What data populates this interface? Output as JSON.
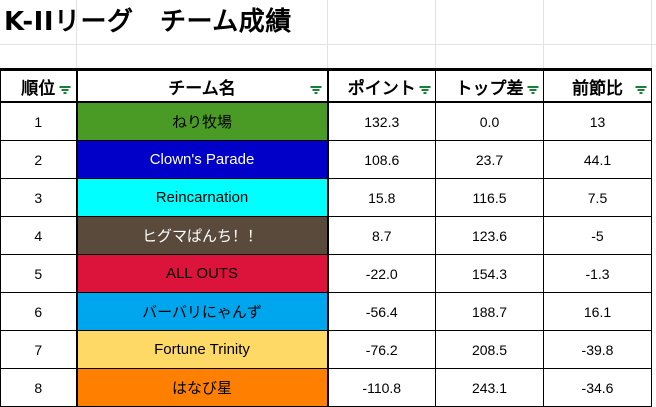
{
  "title": "K-IIリーグ　チーム成績",
  "headers": {
    "rank": "順位",
    "team": "チーム名",
    "points": "ポイント",
    "gap": "トップ差",
    "change": "前節比"
  },
  "filter_icon": "filter-icon",
  "rows": [
    {
      "rank": "1",
      "team": "ねり牧場",
      "team_bg": "#4a9a26",
      "team_fg": "#000000",
      "points": "132.3",
      "gap": "0.0",
      "change": "13"
    },
    {
      "rank": "2",
      "team": "Clown's Parade",
      "team_bg": "#0000c8",
      "team_fg": "#ffffff",
      "points": "108.6",
      "gap": "23.7",
      "change": "44.1"
    },
    {
      "rank": "3",
      "team": "Reincarnation",
      "team_bg": "#00ffff",
      "team_fg": "#000000",
      "points": "15.8",
      "gap": "116.5",
      "change": "7.5"
    },
    {
      "rank": "4",
      "team": "ヒグマぱんち！！",
      "team_bg": "#5a4a3c",
      "team_fg": "#ffffff",
      "points": "8.7",
      "gap": "123.6",
      "change": "-5"
    },
    {
      "rank": "5",
      "team": "ALL OUTS",
      "team_bg": "#dc143c",
      "team_fg": "#000000",
      "points": "-22.0",
      "gap": "154.3",
      "change": "-1.3"
    },
    {
      "rank": "6",
      "team": "バーバリにゃんず",
      "team_bg": "#00a6ed",
      "team_fg": "#000000",
      "points": "-56.4",
      "gap": "188.7",
      "change": "16.1"
    },
    {
      "rank": "7",
      "team": "Fortune Trinity",
      "team_bg": "#ffd966",
      "team_fg": "#000000",
      "points": "-76.2",
      "gap": "208.5",
      "change": "-39.8"
    },
    {
      "rank": "8",
      "team": "はなび星",
      "team_bg": "#ff8000",
      "team_fg": "#000000",
      "points": "-110.8",
      "gap": "243.1",
      "change": "-34.6"
    }
  ]
}
